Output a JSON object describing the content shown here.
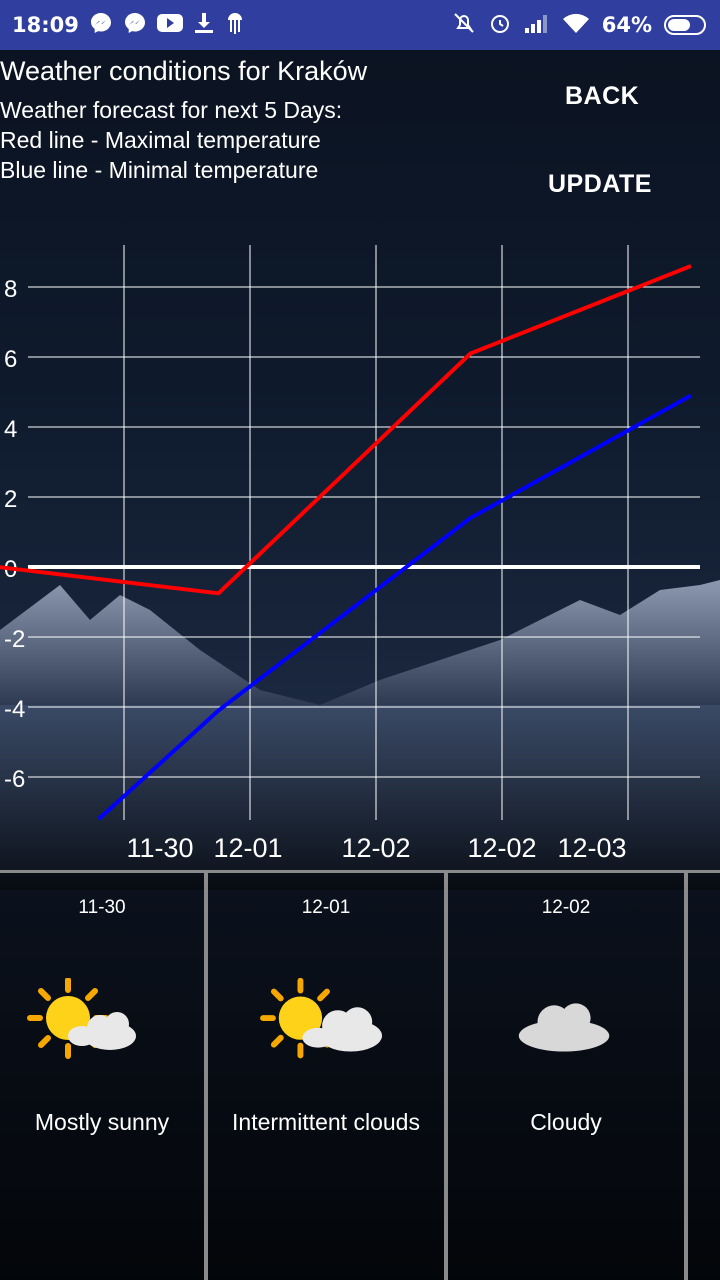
{
  "status_bar": {
    "time": "18:09",
    "battery_percent": "64%",
    "battery_level": 0.64,
    "left_icons": [
      "messenger-icon",
      "messenger-icon",
      "youtube-icon",
      "download-icon",
      "jellyfish-icon"
    ],
    "right_icons": [
      "no-disturb-icon",
      "alarm-icon",
      "signal-icon",
      "wifi-icon",
      "battery-icon"
    ]
  },
  "header": {
    "title": "Weather conditions for Kraków",
    "line1": "Weather forecast for next 5 Days:",
    "line2": "Red line - Maximal temperature",
    "line3": "Blue line - Minimal temperature"
  },
  "buttons": {
    "back": "BACK",
    "update": "UPDATE"
  },
  "chart_data": {
    "type": "line",
    "x": [
      "11-30",
      "12-01",
      "12-02",
      "12-02",
      "12-03"
    ],
    "y_ticks": [
      "8",
      "6",
      "4",
      "2",
      "0",
      "-2",
      "-4",
      "-6"
    ],
    "ylim": [
      -7.2,
      9.3
    ],
    "grid": true,
    "series": [
      {
        "name": "Maximal temperature",
        "color": "#ff0000",
        "points": [
          [
            0,
            0
          ],
          [
            1.75,
            -0.75
          ],
          [
            3.75,
            6.1
          ],
          [
            5.5,
            8.6
          ]
        ]
      },
      {
        "name": "Minimal temperature",
        "color": "#0000ff",
        "points": [
          [
            0.8,
            -7.2
          ],
          [
            1.75,
            -4.1
          ],
          [
            3.75,
            1.4
          ],
          [
            5.5,
            4.9
          ]
        ]
      }
    ]
  },
  "forecast": [
    {
      "date": "11-30",
      "description": "Mostly sunny",
      "icon": "sun-cloud-icon"
    },
    {
      "date": "12-01",
      "description": "Intermittent clouds",
      "icon": "sun-cloud-icon"
    },
    {
      "date": "12-02",
      "description": "Cloudy",
      "icon": "cloud-icon"
    }
  ]
}
